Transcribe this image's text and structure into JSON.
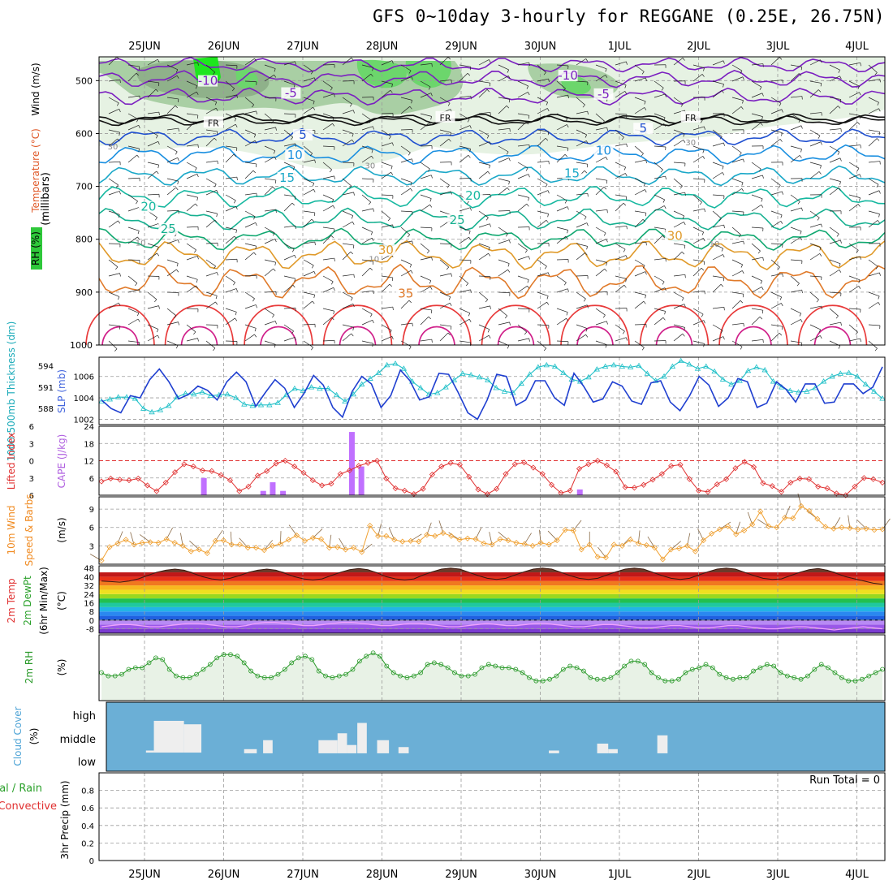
{
  "title": "GFS 0~10day 3-hourly for REGGANE (0.25E, 26.75N)",
  "colors": {
    "grid": "#9a9a9a",
    "rh_light": "#e6f2e3",
    "rh_mid": "#a9cfa4",
    "rh_dark": "#7e9c7a",
    "rh_bright": "#1ee61e",
    "slp": "#1f3fd0",
    "thickness": "#20c0c8",
    "lifted": "#e03030",
    "cape": "#c070ff",
    "wind": "#f0a030",
    "barb": "#8a6b48",
    "rh2m": "#2a9a2a",
    "rh2m_fill": "#e8f2e6",
    "cloud": "#6bafd6",
    "cloud_cell": "#eeeeee",
    "precip_total": "#2aa02a",
    "precip_conv": "#e03030"
  },
  "chart_data": [
    {
      "id": "upper-air",
      "type": "contour",
      "x": [
        "25JUN",
        "26JUN",
        "27JUN",
        "28JUN",
        "29JUN",
        "30JUN",
        "1JUL",
        "2JUL",
        "3JUL",
        "4JUL"
      ],
      "ylabel": "(millibars)",
      "ylabel_parts": [
        "RH (%)",
        "Temperature (°C)",
        "Wind (m/s)"
      ],
      "y_ticks": [
        500,
        600,
        700,
        800,
        900,
        1000
      ],
      "ylim": [
        1000,
        455
      ],
      "temperature_contour_labels": [
        {
          "label": "-10",
          "day": 0.8,
          "p": 505
        },
        {
          "label": "-10",
          "day": 5.35,
          "p": 495
        },
        {
          "label": "-5",
          "day": 1.85,
          "p": 528
        },
        {
          "label": "-5",
          "day": 5.8,
          "p": 530
        },
        {
          "label": "FR",
          "day": 0.87,
          "p": 583
        },
        {
          "label": "FR",
          "day": 3.8,
          "p": 573
        },
        {
          "label": "FR",
          "day": 6.9,
          "p": 573
        },
        {
          "label": "5",
          "day": 2.0,
          "p": 607
        },
        {
          "label": "5",
          "day": 6.3,
          "p": 595
        },
        {
          "label": "10",
          "day": 1.9,
          "p": 645
        },
        {
          "label": "10",
          "day": 5.8,
          "p": 637
        },
        {
          "label": "15",
          "day": 1.8,
          "p": 688
        },
        {
          "label": "15",
          "day": 5.4,
          "p": 680
        },
        {
          "label": "20",
          "day": 0.05,
          "p": 743
        },
        {
          "label": "20",
          "day": 4.15,
          "p": 722
        },
        {
          "label": "25",
          "day": 0.3,
          "p": 785
        },
        {
          "label": "25",
          "day": 3.95,
          "p": 768
        },
        {
          "label": "30",
          "day": 3.05,
          "p": 825
        },
        {
          "label": "30",
          "day": 6.7,
          "p": 798
        },
        {
          "label": "35",
          "day": 3.3,
          "p": 907
        }
      ],
      "rh_contour_labels": [
        {
          "label": "30",
          "day": -0.4,
          "p": 630
        },
        {
          "label": "30",
          "day": 2.85,
          "p": 666
        },
        {
          "label": "30",
          "day": 6.9,
          "p": 622
        },
        {
          "label": "10",
          "day": -0.05,
          "p": 812
        },
        {
          "label": "10",
          "day": 2.9,
          "p": 843
        },
        {
          "label": "10",
          "day": 7.2,
          "p": 814
        }
      ]
    },
    {
      "id": "slp-thickness",
      "type": "line",
      "ylabel_left": "1000-500mb Thickness (dm)",
      "ylabel_right": "SLP (mb)",
      "left_ticks": [
        588,
        591,
        594
      ],
      "right_ticks": [
        1002,
        1004,
        1006
      ],
      "ylim_slp": [
        1001.5,
        1007.8
      ],
      "ylim_thickness": [
        585.75,
        595.2
      ],
      "series": [
        {
          "name": "SLP (mb)",
          "values": [
            1003.8,
            1003.0,
            1002.6,
            1004.2,
            1004.0,
            1005.7,
            1006.7,
            1005.5,
            1003.9,
            1004.3,
            1005.1,
            1004.7,
            1003.8,
            1005.5,
            1006.4,
            1005.5,
            1003.2,
            1004.5,
            1005.7,
            1004.9,
            1003.1,
            1004.4,
            1006.1,
            1005.2,
            1003.1,
            1002.2,
            1004.6,
            1006.0,
            1005.3,
            1003.1,
            1004.2,
            1006.6,
            1005.6,
            1003.8,
            1004.1,
            1006.3,
            1006.2,
            1004.5,
            1002.6,
            1002.0,
            1003.8,
            1006.2,
            1006.0,
            1003.3,
            1003.8,
            1005.6,
            1005.6,
            1004.0,
            1003.3,
            1006.3,
            1005.1,
            1003.6,
            1003.9,
            1005.5,
            1005.1,
            1003.7,
            1003.4,
            1005.4,
            1005.6,
            1003.6,
            1002.8,
            1004.2,
            1006.0,
            1005.2,
            1003.2,
            1004.0,
            1005.8,
            1005.5,
            1003.1,
            1003.5,
            1005.5,
            1004.8,
            1003.6,
            1005.3,
            1005.3,
            1003.5,
            1003.6,
            1005.3,
            1005.3,
            1004.4,
            1005.0,
            1006.9
          ]
        },
        {
          "name": "Thickness (dm)",
          "values": [
            589.0,
            589.3,
            589.6,
            589.6,
            589.4,
            588.0,
            587.5,
            587.8,
            588.4,
            589.6,
            590.1,
            590.0,
            590.3,
            589.8,
            589.9,
            590.0,
            589.5,
            588.6,
            588.4,
            588.5,
            588.5,
            588.8,
            589.9,
            590.8,
            590.5,
            591.0,
            590.8,
            590.8,
            589.9,
            589.0,
            590.0,
            591.4,
            592.2,
            593.0,
            594.1,
            594.3,
            593.6,
            591.8,
            590.9,
            590.0,
            590.2,
            591.0,
            592.0,
            592.9,
            592.7,
            592.4,
            592.0,
            590.9,
            590.4,
            590.2,
            591.5,
            592.8,
            593.8,
            594.1,
            593.9,
            593.0,
            592.1,
            591.8,
            592.4,
            593.5,
            593.9,
            594.1,
            593.9,
            593.8,
            594.0,
            592.9,
            591.9,
            592.5,
            593.9,
            594.7,
            594.2,
            593.6,
            593.9,
            593.2,
            592.1,
            591.4,
            591.9,
            593.3,
            593.8,
            593.4,
            591.8,
            591.0,
            590.5,
            590.3,
            590.4,
            590.9,
            591.8,
            592.5,
            592.9,
            593.0,
            592.5,
            591.4,
            590.4,
            589.4
          ]
        }
      ]
    },
    {
      "id": "lifted-cape",
      "type": "line-bar",
      "ylabel_left": "Lifted Index",
      "ylabel_right": "CAPE (J/kg)",
      "left_ticks": [
        -6,
        -3,
        0,
        3,
        6
      ],
      "right_ticks": [
        6,
        12,
        18,
        24
      ],
      "ylim_li": [
        6,
        -6
      ],
      "ylim_cape": [
        0,
        24
      ],
      "series": [
        {
          "name": "Lifted Index",
          "values": [
            3.6,
            3.1,
            3.3,
            3.4,
            3.1,
            4.3,
            5.3,
            3.8,
            2.0,
            0.6,
            1.0,
            1.7,
            1.8,
            2.5,
            3.4,
            5.3,
            4.5,
            2.6,
            1.8,
            0.5,
            0.0,
            1.0,
            2.1,
            3.4,
            4.3,
            4.0,
            2.3,
            1.7,
            0.9,
            0.4,
            0.0,
            3.1,
            4.8,
            5.2,
            5.8,
            4.9,
            2.4,
            1.0,
            0.4,
            0.7,
            2.8,
            5.0,
            5.8,
            4.9,
            2.3,
            0.6,
            0.3,
            1.2,
            2.3,
            4.2,
            5.6,
            5.2,
            1.4,
            0.6,
            0.0,
            0.8,
            1.9,
            4.6,
            4.7,
            4.2,
            3.3,
            2.3,
            0.9,
            0.7,
            3.2,
            5.2,
            5.4,
            4.1,
            3.2,
            1.3,
            0.2,
            1.1,
            3.9,
            4.4,
            5.4,
            3.8,
            3.1,
            3.2,
            4.5,
            4.8,
            5.7,
            6.0,
            4.5,
            3.0,
            3.2,
            3.8
          ]
        },
        {
          "name": "CAPE (J/kg)",
          "bars": [
            {
              "day": 0.75,
              "v": 6
            },
            {
              "day": 1.5,
              "v": 1.5
            },
            {
              "day": 1.62,
              "v": 4.5
            },
            {
              "day": 1.75,
              "v": 1.5
            },
            {
              "day": 2.62,
              "v": 22
            },
            {
              "day": 2.74,
              "v": 10
            },
            {
              "day": 5.5,
              "v": 2
            }
          ]
        }
      ]
    },
    {
      "id": "wind10m",
      "type": "line",
      "ylabel_left": "10m Wind",
      "ylabel_left2": "Speed & Barbs",
      "ylabel_right": "(m/s)",
      "y_ticks": [
        3,
        6,
        9
      ],
      "ylim": [
        0,
        11
      ],
      "series": [
        {
          "name": "10m Wind Speed",
          "values": [
            0.6,
            2.8,
            3.4,
            4.0,
            3.2,
            3.5,
            3.6,
            3.5,
            4.1,
            3.5,
            3.0,
            2.1,
            2.4,
            1.8,
            3.8,
            3.9,
            3.2,
            3.2,
            2.7,
            2.7,
            2.3,
            3.0,
            3.3,
            4.0,
            4.7,
            3.8,
            4.3,
            4.1,
            2.7,
            2.8,
            2.4,
            2.7,
            2.0,
            6.3,
            4.6,
            4.6,
            4.0,
            3.7,
            3.8,
            3.7,
            4.8,
            4.6,
            5.1,
            4.6,
            4.0,
            4.2,
            4.1,
            3.4,
            3.2,
            4.1,
            3.9,
            3.5,
            3.3,
            3.0,
            3.5,
            3.2,
            3.9,
            5.6,
            5.5,
            2.4,
            3.2,
            1.2,
            1.1,
            3.2,
            3.0,
            4.0,
            3.4,
            3.1,
            2.7,
            0.8,
            2.4,
            2.6,
            3.0,
            2.1,
            3.9,
            5.0,
            5.7,
            6.2,
            4.9,
            5.5,
            6.5,
            8.6,
            6.2,
            6.0,
            7.6,
            7.5,
            9.5,
            8.7,
            7.4,
            6.1,
            5.8,
            6.0,
            5.9,
            5.7,
            5.8,
            5.6,
            5.7
          ]
        }
      ]
    },
    {
      "id": "temp2m",
      "type": "area",
      "ylabel_left": "2m Temp",
      "ylabel_left2": "2m DewPt",
      "ylabel_left3": "(6hr Min/Max)",
      "ylabel_right": "(°C)",
      "y_ticks": [
        -8,
        0,
        8,
        16,
        24,
        32,
        40,
        48
      ],
      "ylim": [
        -12,
        50
      ],
      "series": [
        {
          "name": "2m Temp",
          "values": [
            36,
            35.5,
            35,
            36,
            38,
            41,
            44,
            46,
            47,
            46,
            43,
            40,
            38,
            37,
            38.5,
            41,
            44,
            46,
            47,
            46,
            43,
            40,
            38,
            37,
            38,
            41,
            44,
            46.5,
            47.5,
            46.5,
            43.5,
            40,
            38,
            37,
            38,
            41.5,
            44.5,
            47,
            48,
            47,
            44,
            41,
            38.5,
            37.5,
            38.5,
            41.5,
            44.5,
            47,
            48,
            47,
            44,
            41,
            38.5,
            37.5,
            38.5,
            41.5,
            44.5,
            47,
            48,
            47,
            44,
            41,
            38.5,
            37.5,
            38.5,
            41.5,
            44.5,
            47,
            48,
            47,
            44,
            41,
            38.5,
            37.5,
            38,
            41,
            44,
            46.5,
            47.5,
            46,
            43,
            40,
            38,
            36,
            34,
            33
          ]
        },
        {
          "name": "2m DewPt",
          "values": [
            -6,
            -5,
            -4,
            -4,
            -5,
            -6,
            -6,
            -5,
            -4,
            -3,
            -3,
            -4,
            -5,
            -6,
            -6,
            -5,
            -3,
            -2,
            -2,
            -3,
            -4,
            -5,
            -5,
            -4,
            -3,
            -2,
            -2,
            -3,
            -4,
            -5,
            -5,
            -4,
            -3,
            -3,
            -4,
            -5,
            -6,
            -6,
            -5,
            -4,
            -3,
            -4,
            -5,
            -5,
            -4,
            -3,
            -3,
            -4,
            -5,
            -6,
            -6,
            -5,
            -4,
            -4,
            -5,
            -6,
            -7,
            -7,
            -6,
            -5,
            -5,
            -6,
            -7,
            -7,
            -6,
            -5,
            -5,
            -6,
            -7,
            -8,
            -8,
            -7,
            -6,
            -6,
            -7,
            -8,
            -9,
            -8,
            -7,
            -6,
            -7,
            -8
          ]
        }
      ]
    },
    {
      "id": "rh2m",
      "type": "area",
      "ylabel_left": "2m RH",
      "ylabel_right": "(%)",
      "ylim": [
        0,
        40
      ],
      "series": [
        {
          "name": "2m RH",
          "values": [
            17,
            15,
            15,
            16,
            19,
            20,
            20,
            23,
            26,
            25,
            19,
            15,
            14,
            14,
            16,
            19,
            22,
            26,
            28,
            28,
            27,
            23,
            18,
            15,
            14,
            14,
            16,
            19,
            23,
            26,
            27,
            25,
            18,
            15,
            14,
            15,
            16,
            19,
            24,
            27,
            29,
            27,
            21,
            17,
            15,
            14,
            15,
            17,
            22,
            23,
            22,
            20,
            17,
            15,
            15,
            16,
            20,
            22,
            21,
            20,
            20,
            19,
            17,
            14,
            12,
            12,
            13,
            15,
            19,
            21,
            20,
            18,
            14,
            13,
            13,
            14,
            17,
            21,
            24,
            24,
            22,
            17,
            14,
            12,
            12,
            13,
            17,
            19,
            20,
            22,
            20,
            16,
            14,
            13,
            14,
            14,
            18,
            20,
            22,
            21,
            17,
            15,
            14,
            13,
            15,
            19,
            22,
            20,
            17,
            14,
            12,
            12,
            13,
            15,
            17,
            19
          ]
        }
      ]
    },
    {
      "id": "cloud",
      "type": "heatmap",
      "ylabel_left": "Cloud Cover",
      "ylabel_right": "(%)",
      "levels": [
        "high",
        "middle",
        "low"
      ],
      "cells": [
        {
          "day": 0.48,
          "w": 0.1,
          "top": 0.7,
          "bot": 0.73
        },
        {
          "day": 0.58,
          "w": 0.38,
          "top": 0.27,
          "bot": 0.73
        },
        {
          "day": 0.96,
          "w": 0.22,
          "top": 0.32,
          "bot": 0.73
        },
        {
          "day": 1.72,
          "w": 0.16,
          "top": 0.68,
          "bot": 0.74
        },
        {
          "day": 1.96,
          "w": 0.12,
          "top": 0.55,
          "bot": 0.74
        },
        {
          "day": 2.66,
          "w": 0.24,
          "top": 0.55,
          "bot": 0.74
        },
        {
          "day": 2.9,
          "w": 0.12,
          "top": 0.45,
          "bot": 0.74
        },
        {
          "day": 3.02,
          "w": 0.12,
          "top": 0.62,
          "bot": 0.74
        },
        {
          "day": 3.15,
          "w": 0.12,
          "top": 0.3,
          "bot": 0.74
        },
        {
          "day": 3.4,
          "w": 0.15,
          "top": 0.55,
          "bot": 0.74
        },
        {
          "day": 3.67,
          "w": 0.13,
          "top": 0.65,
          "bot": 0.74
        },
        {
          "day": 5.57,
          "w": 0.13,
          "top": 0.7,
          "bot": 0.74
        },
        {
          "day": 6.18,
          "w": 0.14,
          "top": 0.6,
          "bot": 0.74
        },
        {
          "day": 6.32,
          "w": 0.12,
          "top": 0.68,
          "bot": 0.74
        },
        {
          "day": 6.94,
          "w": 0.13,
          "top": 0.48,
          "bot": 0.74
        }
      ]
    },
    {
      "id": "precip",
      "type": "bar",
      "ylabel_left": "Total / Rain",
      "ylabel_left2": "Convective",
      "ylabel_right": "3hr Precip (mm)",
      "y_ticks": [
        0,
        0.2,
        0.4,
        0.6,
        0.8
      ],
      "ylim": [
        0,
        1
      ],
      "run_total": "Run Total = 0",
      "series": [
        {
          "name": "Total / Rain",
          "values": []
        },
        {
          "name": "Convective",
          "values": []
        }
      ]
    }
  ]
}
